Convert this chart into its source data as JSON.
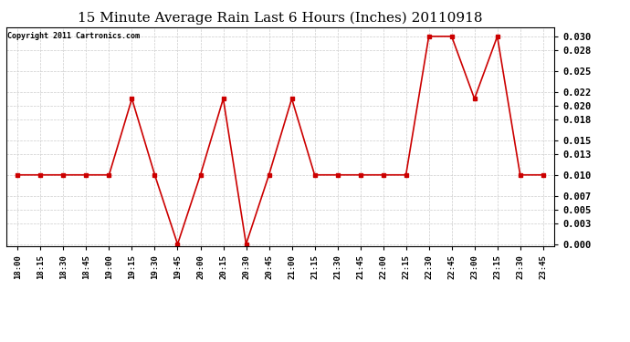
{
  "title": "15 Minute Average Rain Last 6 Hours (Inches) 20110918",
  "copyright": "Copyright 2011 Cartronics.com",
  "x_labels": [
    "18:00",
    "18:15",
    "18:30",
    "18:45",
    "19:00",
    "19:15",
    "19:30",
    "19:45",
    "20:00",
    "20:15",
    "20:30",
    "20:45",
    "21:00",
    "21:15",
    "21:30",
    "21:45",
    "22:00",
    "22:15",
    "22:30",
    "22:45",
    "23:00",
    "23:15",
    "23:30",
    "23:45"
  ],
  "y_values": [
    0.01,
    0.01,
    0.01,
    0.01,
    0.01,
    0.021,
    0.01,
    0.0,
    0.01,
    0.021,
    0.0,
    0.01,
    0.021,
    0.01,
    0.01,
    0.01,
    0.01,
    0.01,
    0.03,
    0.03,
    0.021,
    0.03,
    0.01,
    0.01
  ],
  "line_color": "#cc0000",
  "marker": "s",
  "marker_size": 3,
  "bg_color": "#ffffff",
  "grid_color": "#cccccc",
  "title_fontsize": 11,
  "y_ticks": [
    0.0,
    0.003,
    0.005,
    0.007,
    0.01,
    0.013,
    0.015,
    0.018,
    0.02,
    0.022,
    0.025,
    0.028,
    0.03
  ]
}
